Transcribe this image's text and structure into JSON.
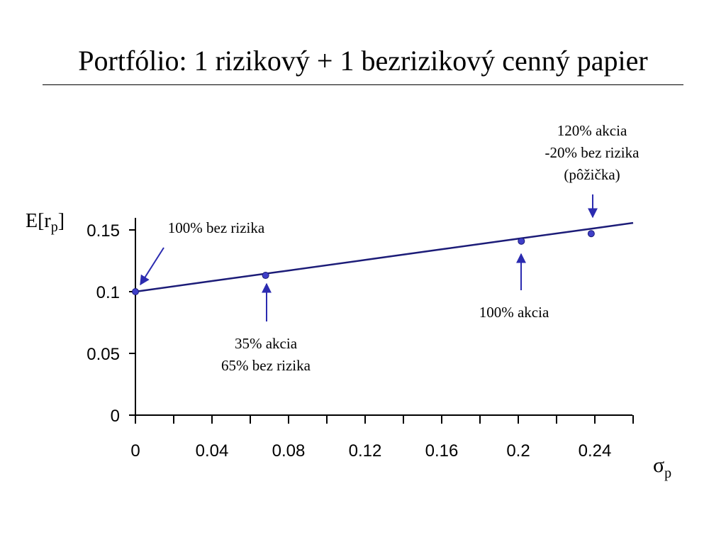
{
  "slide": {
    "title": "Portfólio: 1 rizikový + 1 bezrizikový cenný papier"
  },
  "chart_data": {
    "type": "line",
    "title": "",
    "ylabel_main": "E[r",
    "ylabel_sub": "p",
    "ylabel_close": "]",
    "xlabel_main": "σ",
    "xlabel_sub": "p",
    "xlim": [
      0,
      0.26
    ],
    "ylim": [
      0,
      0.15
    ],
    "x_ticks": [
      "0",
      "0.04",
      "0.08",
      "0.12",
      "0.16",
      "0.2",
      "0.24"
    ],
    "x_tick_values": [
      0,
      0.04,
      0.08,
      0.12,
      0.16,
      0.2,
      0.24
    ],
    "y_ticks": [
      "0",
      "0.05",
      "0.1",
      "0.15"
    ],
    "y_tick_values": [
      0,
      0.05,
      0.1,
      0.15
    ],
    "series": [
      {
        "color": "#1c1c78",
        "x": [
          0,
          0.04,
          0.08,
          0.12,
          0.16,
          0.2,
          0.24,
          0.26
        ],
        "y": [
          0.1,
          0.1086,
          0.1171,
          0.1257,
          0.1343,
          0.1429,
          0.1514,
          0.1557
        ]
      }
    ],
    "markers": [
      {
        "x": 0,
        "y": 0.1
      },
      {
        "x": 0.068,
        "y": 0.1132
      },
      {
        "x": 0.2016,
        "y": 0.1409
      },
      {
        "x": 0.2381,
        "y": 0.147
      }
    ],
    "marker_color": "#3f3fc8",
    "arrow_color": "#2b2bb0",
    "annotations": [
      {
        "lines": [
          "100% bez rizika"
        ]
      },
      {
        "lines": [
          "35% akcia",
          "65% bez rizika"
        ]
      },
      {
        "lines": [
          "100% akcia"
        ]
      },
      {
        "lines": [
          "120% akcia",
          "-20% bez rizika",
          "(pôžička)"
        ]
      }
    ],
    "grid": false
  }
}
